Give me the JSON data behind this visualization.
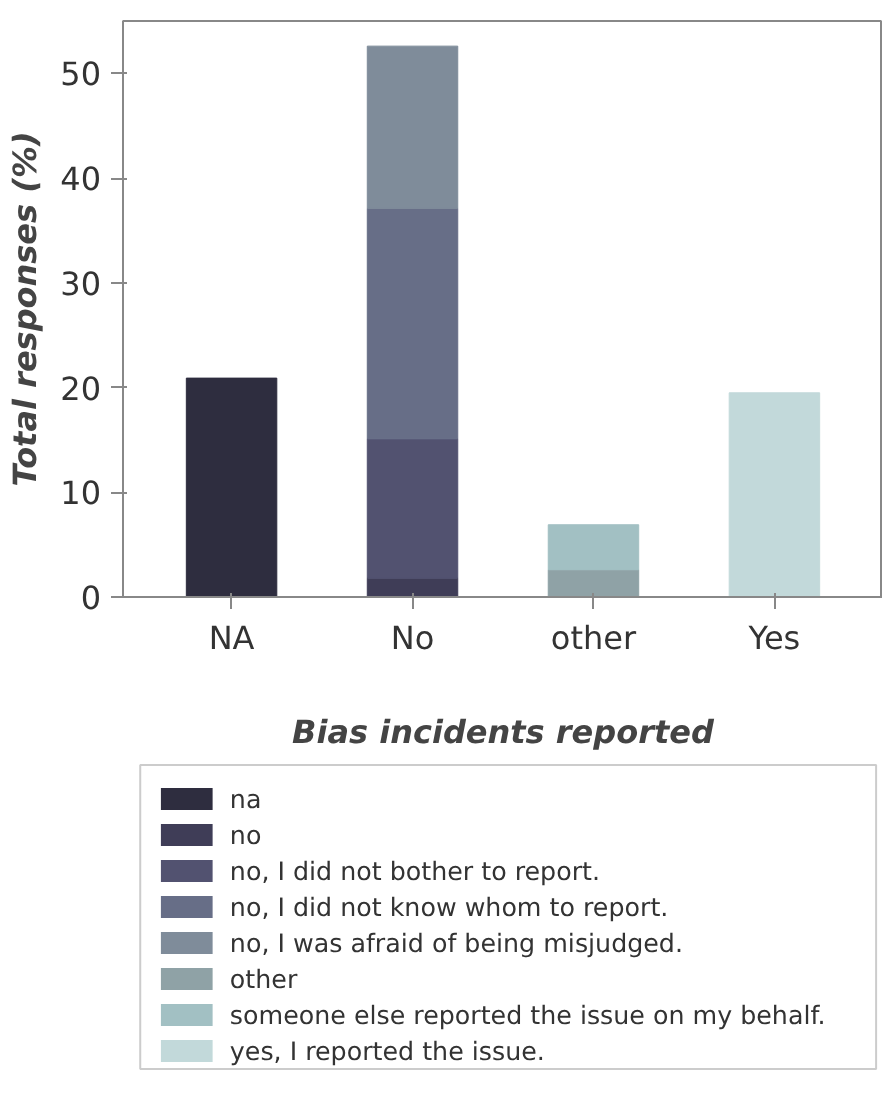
{
  "chart_data": {
    "type": "bar",
    "stacked": true,
    "xlabel": "Bias incidents reported",
    "ylabel": "Total responses (%)",
    "categories": [
      "NA",
      "No",
      "other",
      "Yes"
    ],
    "series": [
      {
        "name": "na",
        "color": "#2e2d3f",
        "values": [
          20.9,
          null,
          null,
          null
        ]
      },
      {
        "name": "no",
        "color": "#3f3d57",
        "values": [
          null,
          1.8,
          null,
          null
        ]
      },
      {
        "name": "no, I did not bother to report.",
        "color": "#525270",
        "values": [
          null,
          13.3,
          null,
          null
        ]
      },
      {
        "name": "no, I did not know whom to report.",
        "color": "#676e87",
        "values": [
          null,
          22.0,
          null,
          null
        ]
      },
      {
        "name": "no, I was afraid of being misjudged.",
        "color": "#7f8c9a",
        "values": [
          null,
          15.5,
          null,
          null
        ]
      },
      {
        "name": "other",
        "color": "#8fa2a6",
        "values": [
          null,
          null,
          2.6,
          null
        ]
      },
      {
        "name": "someone else reported the issue on my behalf.",
        "color": "#a2c0c3",
        "values": [
          null,
          null,
          4.3,
          null
        ]
      },
      {
        "name": "yes, I reported the issue.",
        "color": "#c2d9da",
        "values": [
          null,
          null,
          null,
          19.5
        ]
      }
    ],
    "ylim": [
      0,
      55
    ],
    "yticks": [
      0,
      10,
      20,
      30,
      40,
      50
    ],
    "grid": false,
    "legend": "bottom"
  }
}
